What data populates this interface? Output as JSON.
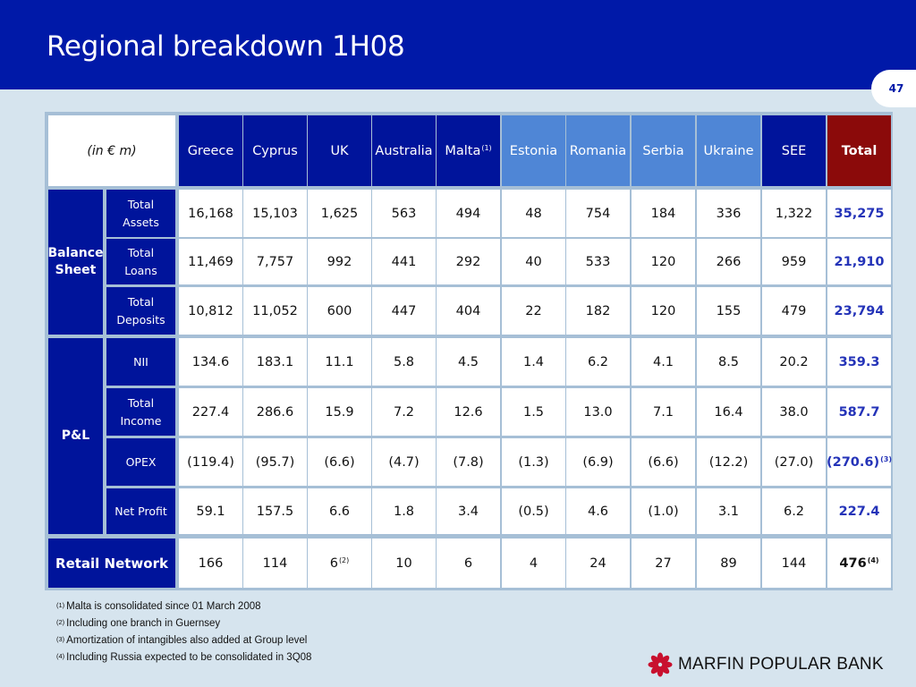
{
  "header": {
    "title": "Regional breakdown 1H08",
    "page_number": "47"
  },
  "table": {
    "corner_label": "(in € m)",
    "columns": [
      {
        "label": "Greece",
        "style": "dark"
      },
      {
        "label": "Cyprus",
        "style": "dark"
      },
      {
        "label": "UK",
        "style": "dark"
      },
      {
        "label": "Australia",
        "style": "dark"
      },
      {
        "label": "Malta",
        "sup": "(1)",
        "style": "dark"
      },
      {
        "label": "Estonia",
        "style": "light"
      },
      {
        "label": "Romania",
        "style": "light"
      },
      {
        "label": "Serbia",
        "style": "light"
      },
      {
        "label": "Ukraine",
        "style": "light"
      },
      {
        "label": "SEE",
        "style": "dark"
      },
      {
        "label": "Total",
        "style": "red"
      }
    ],
    "groups": [
      {
        "label_lines": [
          "Balance",
          "Sheet"
        ],
        "rows": [
          0,
          1,
          2
        ]
      },
      {
        "label_lines": [
          "P&L"
        ],
        "rows": [
          3,
          4,
          5,
          6
        ]
      }
    ],
    "rows": [
      {
        "label_lines": [
          "Total",
          "Assets"
        ],
        "values": [
          "16,168",
          "15,103",
          "1,625",
          "563",
          "494",
          "48",
          "754",
          "184",
          "336",
          "1,322",
          "35,275"
        ]
      },
      {
        "label_lines": [
          "Total",
          "Loans"
        ],
        "values": [
          "11,469",
          "7,757",
          "992",
          "441",
          "292",
          "40",
          "533",
          "120",
          "266",
          "959",
          "21,910"
        ]
      },
      {
        "label_lines": [
          "Total",
          "Deposits"
        ],
        "values": [
          "10,812",
          "11,052",
          "600",
          "447",
          "404",
          "22",
          "182",
          "120",
          "155",
          "479",
          "23,794"
        ]
      },
      {
        "label_lines": [
          "NII"
        ],
        "values": [
          "134.6",
          "183.1",
          "11.1",
          "5.8",
          "4.5",
          "1.4",
          "6.2",
          "4.1",
          "8.5",
          "20.2",
          "359.3"
        ]
      },
      {
        "label_lines": [
          "Total",
          "Income"
        ],
        "values": [
          "227.4",
          "286.6",
          "15.9",
          "7.2",
          "12.6",
          "1.5",
          "13.0",
          "7.1",
          "16.4",
          "38.0",
          "587.7"
        ]
      },
      {
        "label_lines": [
          "OPEX"
        ],
        "values": [
          "(119.4)",
          "(95.7)",
          "(6.6)",
          "(4.7)",
          "(7.8)",
          "(1.3)",
          "(6.9)",
          "(6.6)",
          "(12.2)",
          "(27.0)",
          "(270.6)"
        ],
        "sups": {
          "10": "(3)"
        }
      },
      {
        "label_lines": [
          "Net Profit"
        ],
        "values": [
          "59.1",
          "157.5",
          "6.6",
          "1.8",
          "3.4",
          "(0.5)",
          "4.6",
          "(1.0)",
          "3.1",
          "6.2",
          "227.4"
        ]
      }
    ],
    "retail": {
      "label": "Retail Network",
      "values": [
        "166",
        "114",
        "6",
        "10",
        "6",
        "4",
        "24",
        "27",
        "89",
        "144",
        "476"
      ],
      "sups": {
        "2": "(2)",
        "10": "(4)"
      }
    }
  },
  "footnotes": [
    {
      "mark": "(1)",
      "text": "Malta is consolidated since 01 March  2008"
    },
    {
      "mark": "(2)",
      "text": "Including one branch in Guernsey"
    },
    {
      "mark": "(3)",
      "text": "Amortization of intangibles also added at Group level"
    },
    {
      "mark": "(4)",
      "text": "Including Russia expected to be consolidated in 3Q08"
    }
  ],
  "brand": {
    "name": "MARFIN POPULAR BANK",
    "icon": "marfin-flower-logo-icon",
    "color": "#c8102e"
  }
}
